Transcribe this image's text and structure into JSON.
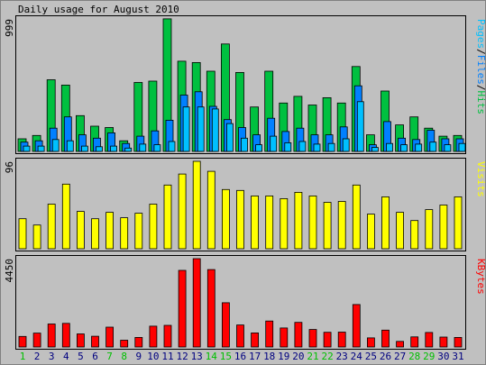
{
  "chart_data": {
    "type": "bar",
    "title": "Daily usage for August 2010",
    "categories": [
      "1",
      "2",
      "3",
      "4",
      "5",
      "6",
      "7",
      "8",
      "9",
      "10",
      "11",
      "12",
      "13",
      "14",
      "15",
      "16",
      "17",
      "18",
      "19",
      "20",
      "21",
      "22",
      "23",
      "24",
      "25",
      "26",
      "27",
      "28",
      "29",
      "30",
      "31"
    ],
    "weekend_days": [
      "1",
      "7",
      "8",
      "14",
      "15",
      "21",
      "22",
      "28",
      "29"
    ],
    "panels": [
      {
        "name": "hits-files-pages",
        "ylabel_parts": [
          "Pages",
          "/",
          "Files",
          "/",
          "Hits"
        ],
        "ymax_label": "999",
        "ylim": [
          0,
          999
        ],
        "series": [
          {
            "name": "Hits",
            "color": "#00C040",
            "values": [
              95,
              120,
              540,
              500,
              270,
              190,
              180,
              80,
              520,
              530,
              1000,
              680,
              670,
              605,
              810,
              595,
              335,
              605,
              365,
              415,
              350,
              405,
              365,
              640,
              125,
              455,
              200,
              260,
              175,
              115,
              120
            ]
          },
          {
            "name": "Files",
            "color": "#0080FF",
            "values": [
              70,
              80,
              175,
              260,
              125,
              100,
              140,
              60,
              115,
              155,
              235,
              425,
              450,
              340,
              240,
              180,
              125,
              250,
              150,
              175,
              125,
              125,
              185,
              495,
              50,
              225,
              100,
              90,
              160,
              95,
              95
            ]
          },
          {
            "name": "Pages",
            "color": "#00C0FF",
            "values": [
              40,
              40,
              90,
              80,
              40,
              35,
              40,
              25,
              55,
              50,
              75,
              335,
              335,
              320,
              210,
              100,
              50,
              115,
              65,
              75,
              55,
              60,
              95,
              375,
              30,
              60,
              50,
              55,
              70,
              50,
              60
            ]
          }
        ]
      },
      {
        "name": "visits",
        "ylabel_parts": [
          "Visits"
        ],
        "ymax_label": "96",
        "ylim": [
          0,
          96
        ],
        "series": [
          {
            "name": "Visits",
            "color": "#FFFF00",
            "values": [
              33,
              26,
              49,
              71,
              41,
              33,
              40,
              34,
              39,
              49,
              70,
              82,
              96,
              85,
              65,
              64,
              58,
              58,
              55,
              62,
              58,
              51,
              52,
              70,
              38,
              57,
              40,
              31,
              43,
              48,
              57
            ]
          }
        ]
      },
      {
        "name": "kbytes",
        "ylabel_parts": [
          "KBytes"
        ],
        "ymax_label": "4450",
        "ylim": [
          0,
          4450
        ],
        "series": [
          {
            "name": "KBytes",
            "color": "#FF0000",
            "values": [
              530,
              700,
              1160,
              1190,
              660,
              540,
              1000,
              340,
              480,
              1050,
              1090,
              3860,
              4450,
              3900,
              2230,
              1110,
              710,
              1310,
              960,
              1240,
              880,
              740,
              750,
              2140,
              460,
              850,
              280,
              510,
              730,
              500,
              480
            ]
          }
        ]
      }
    ]
  },
  "colors": {
    "background": "#C0C0C0",
    "panel": "#C0C0C0",
    "border": "#000000",
    "weekend_label": "#00C000",
    "weekday_label": "#000080"
  }
}
